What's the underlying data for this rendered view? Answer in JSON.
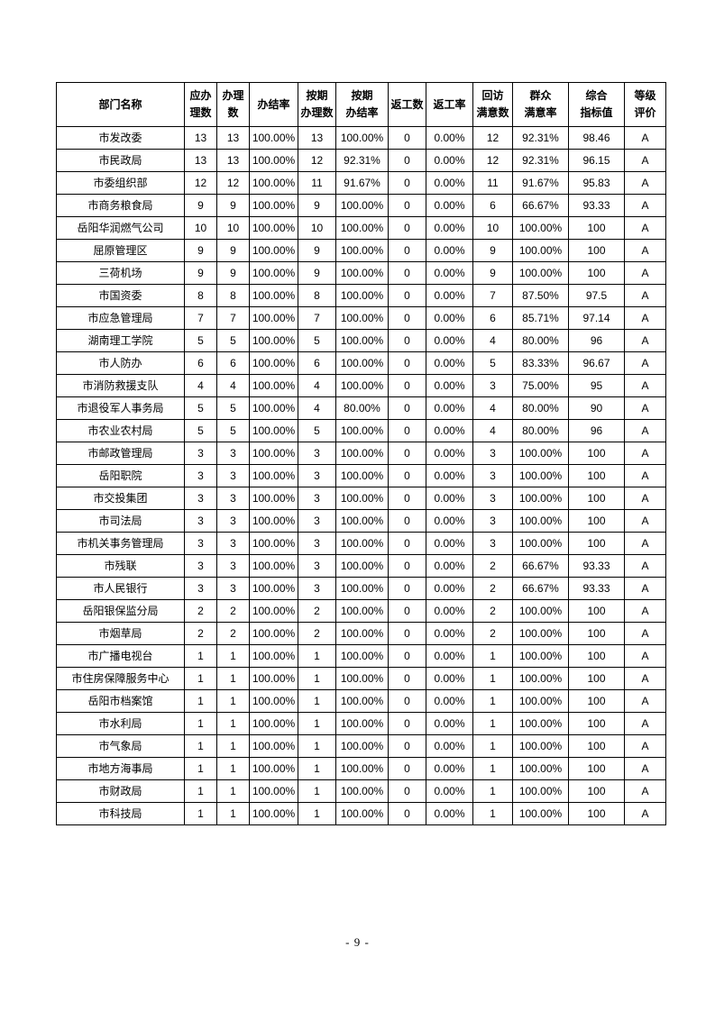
{
  "page": {
    "number": "- 9 -",
    "background_color": "#ffffff",
    "border_color": "#000000",
    "text_color": "#000000"
  },
  "table": {
    "headers": [
      "部门名称",
      "应办\n理数",
      "办理\n数",
      "办结率",
      "按期\n办理数",
      "按期\n办结率",
      "返工数",
      "返工率",
      "回访\n满意数",
      "群众\n满意率",
      "综合\n指标值",
      "等级\n评价"
    ],
    "rows": [
      [
        "市发改委",
        "13",
        "13",
        "100.00%",
        "13",
        "100.00%",
        "0",
        "0.00%",
        "12",
        "92.31%",
        "98.46",
        "A"
      ],
      [
        "市民政局",
        "13",
        "13",
        "100.00%",
        "12",
        "92.31%",
        "0",
        "0.00%",
        "12",
        "92.31%",
        "96.15",
        "A"
      ],
      [
        "市委组织部",
        "12",
        "12",
        "100.00%",
        "11",
        "91.67%",
        "0",
        "0.00%",
        "11",
        "91.67%",
        "95.83",
        "A"
      ],
      [
        "市商务粮食局",
        "9",
        "9",
        "100.00%",
        "9",
        "100.00%",
        "0",
        "0.00%",
        "6",
        "66.67%",
        "93.33",
        "A"
      ],
      [
        "岳阳华润燃气公司",
        "10",
        "10",
        "100.00%",
        "10",
        "100.00%",
        "0",
        "0.00%",
        "10",
        "100.00%",
        "100",
        "A"
      ],
      [
        "屈原管理区",
        "9",
        "9",
        "100.00%",
        "9",
        "100.00%",
        "0",
        "0.00%",
        "9",
        "100.00%",
        "100",
        "A"
      ],
      [
        "三荷机场",
        "9",
        "9",
        "100.00%",
        "9",
        "100.00%",
        "0",
        "0.00%",
        "9",
        "100.00%",
        "100",
        "A"
      ],
      [
        "市国资委",
        "8",
        "8",
        "100.00%",
        "8",
        "100.00%",
        "0",
        "0.00%",
        "7",
        "87.50%",
        "97.5",
        "A"
      ],
      [
        "市应急管理局",
        "7",
        "7",
        "100.00%",
        "7",
        "100.00%",
        "0",
        "0.00%",
        "6",
        "85.71%",
        "97.14",
        "A"
      ],
      [
        "湖南理工学院",
        "5",
        "5",
        "100.00%",
        "5",
        "100.00%",
        "0",
        "0.00%",
        "4",
        "80.00%",
        "96",
        "A"
      ],
      [
        "市人防办",
        "6",
        "6",
        "100.00%",
        "6",
        "100.00%",
        "0",
        "0.00%",
        "5",
        "83.33%",
        "96.67",
        "A"
      ],
      [
        "市消防救援支队",
        "4",
        "4",
        "100.00%",
        "4",
        "100.00%",
        "0",
        "0.00%",
        "3",
        "75.00%",
        "95",
        "A"
      ],
      [
        "市退役军人事务局",
        "5",
        "5",
        "100.00%",
        "4",
        "80.00%",
        "0",
        "0.00%",
        "4",
        "80.00%",
        "90",
        "A"
      ],
      [
        "市农业农村局",
        "5",
        "5",
        "100.00%",
        "5",
        "100.00%",
        "0",
        "0.00%",
        "4",
        "80.00%",
        "96",
        "A"
      ],
      [
        "市邮政管理局",
        "3",
        "3",
        "100.00%",
        "3",
        "100.00%",
        "0",
        "0.00%",
        "3",
        "100.00%",
        "100",
        "A"
      ],
      [
        "岳阳职院",
        "3",
        "3",
        "100.00%",
        "3",
        "100.00%",
        "0",
        "0.00%",
        "3",
        "100.00%",
        "100",
        "A"
      ],
      [
        "市交投集团",
        "3",
        "3",
        "100.00%",
        "3",
        "100.00%",
        "0",
        "0.00%",
        "3",
        "100.00%",
        "100",
        "A"
      ],
      [
        "市司法局",
        "3",
        "3",
        "100.00%",
        "3",
        "100.00%",
        "0",
        "0.00%",
        "3",
        "100.00%",
        "100",
        "A"
      ],
      [
        "市机关事务管理局",
        "3",
        "3",
        "100.00%",
        "3",
        "100.00%",
        "0",
        "0.00%",
        "3",
        "100.00%",
        "100",
        "A"
      ],
      [
        "市残联",
        "3",
        "3",
        "100.00%",
        "3",
        "100.00%",
        "0",
        "0.00%",
        "2",
        "66.67%",
        "93.33",
        "A"
      ],
      [
        "市人民银行",
        "3",
        "3",
        "100.00%",
        "3",
        "100.00%",
        "0",
        "0.00%",
        "2",
        "66.67%",
        "93.33",
        "A"
      ],
      [
        "岳阳银保监分局",
        "2",
        "2",
        "100.00%",
        "2",
        "100.00%",
        "0",
        "0.00%",
        "2",
        "100.00%",
        "100",
        "A"
      ],
      [
        "市烟草局",
        "2",
        "2",
        "100.00%",
        "2",
        "100.00%",
        "0",
        "0.00%",
        "2",
        "100.00%",
        "100",
        "A"
      ],
      [
        "市广播电视台",
        "1",
        "1",
        "100.00%",
        "1",
        "100.00%",
        "0",
        "0.00%",
        "1",
        "100.00%",
        "100",
        "A"
      ],
      [
        "市住房保障服务中心",
        "1",
        "1",
        "100.00%",
        "1",
        "100.00%",
        "0",
        "0.00%",
        "1",
        "100.00%",
        "100",
        "A"
      ],
      [
        "岳阳市档案馆",
        "1",
        "1",
        "100.00%",
        "1",
        "100.00%",
        "0",
        "0.00%",
        "1",
        "100.00%",
        "100",
        "A"
      ],
      [
        "市水利局",
        "1",
        "1",
        "100.00%",
        "1",
        "100.00%",
        "0",
        "0.00%",
        "1",
        "100.00%",
        "100",
        "A"
      ],
      [
        "市气象局",
        "1",
        "1",
        "100.00%",
        "1",
        "100.00%",
        "0",
        "0.00%",
        "1",
        "100.00%",
        "100",
        "A"
      ],
      [
        "市地方海事局",
        "1",
        "1",
        "100.00%",
        "1",
        "100.00%",
        "0",
        "0.00%",
        "1",
        "100.00%",
        "100",
        "A"
      ],
      [
        "市财政局",
        "1",
        "1",
        "100.00%",
        "1",
        "100.00%",
        "0",
        "0.00%",
        "1",
        "100.00%",
        "100",
        "A"
      ],
      [
        "市科技局",
        "1",
        "1",
        "100.00%",
        "1",
        "100.00%",
        "0",
        "0.00%",
        "1",
        "100.00%",
        "100",
        "A"
      ]
    ]
  },
  "chart_data": {
    "type": "table",
    "title": "",
    "columns": [
      "部门名称",
      "应办理数",
      "办理数",
      "办结率",
      "按期办理数",
      "按期办结率",
      "返工数",
      "返工率",
      "回访满意数",
      "群众满意率",
      "综合指标值",
      "等级评价"
    ],
    "rows": [
      [
        "市发改委",
        13,
        13,
        "100.00%",
        13,
        "100.00%",
        0,
        "0.00%",
        12,
        "92.31%",
        98.46,
        "A"
      ],
      [
        "市民政局",
        13,
        13,
        "100.00%",
        12,
        "92.31%",
        0,
        "0.00%",
        12,
        "92.31%",
        96.15,
        "A"
      ],
      [
        "市委组织部",
        12,
        12,
        "100.00%",
        11,
        "91.67%",
        0,
        "0.00%",
        11,
        "91.67%",
        95.83,
        "A"
      ],
      [
        "市商务粮食局",
        9,
        9,
        "100.00%",
        9,
        "100.00%",
        0,
        "0.00%",
        6,
        "66.67%",
        93.33,
        "A"
      ],
      [
        "岳阳华润燃气公司",
        10,
        10,
        "100.00%",
        10,
        "100.00%",
        0,
        "0.00%",
        10,
        "100.00%",
        100,
        "A"
      ],
      [
        "屈原管理区",
        9,
        9,
        "100.00%",
        9,
        "100.00%",
        0,
        "0.00%",
        9,
        "100.00%",
        100,
        "A"
      ],
      [
        "三荷机场",
        9,
        9,
        "100.00%",
        9,
        "100.00%",
        0,
        "0.00%",
        9,
        "100.00%",
        100,
        "A"
      ],
      [
        "市国资委",
        8,
        8,
        "100.00%",
        8,
        "100.00%",
        0,
        "0.00%",
        7,
        "87.50%",
        97.5,
        "A"
      ],
      [
        "市应急管理局",
        7,
        7,
        "100.00%",
        7,
        "100.00%",
        0,
        "0.00%",
        6,
        "85.71%",
        97.14,
        "A"
      ],
      [
        "湖南理工学院",
        5,
        5,
        "100.00%",
        5,
        "100.00%",
        0,
        "0.00%",
        4,
        "80.00%",
        96,
        "A"
      ],
      [
        "市人防办",
        6,
        6,
        "100.00%",
        6,
        "100.00%",
        0,
        "0.00%",
        5,
        "83.33%",
        96.67,
        "A"
      ],
      [
        "市消防救援支队",
        4,
        4,
        "100.00%",
        4,
        "100.00%",
        0,
        "0.00%",
        3,
        "75.00%",
        95,
        "A"
      ],
      [
        "市退役军人事务局",
        5,
        5,
        "100.00%",
        4,
        "80.00%",
        0,
        "0.00%",
        4,
        "80.00%",
        90,
        "A"
      ],
      [
        "市农业农村局",
        5,
        5,
        "100.00%",
        5,
        "100.00%",
        0,
        "0.00%",
        4,
        "80.00%",
        96,
        "A"
      ],
      [
        "市邮政管理局",
        3,
        3,
        "100.00%",
        3,
        "100.00%",
        0,
        "0.00%",
        3,
        "100.00%",
        100,
        "A"
      ],
      [
        "岳阳职院",
        3,
        3,
        "100.00%",
        3,
        "100.00%",
        0,
        "0.00%",
        3,
        "100.00%",
        100,
        "A"
      ],
      [
        "市交投集团",
        3,
        3,
        "100.00%",
        3,
        "100.00%",
        0,
        "0.00%",
        3,
        "100.00%",
        100,
        "A"
      ],
      [
        "市司法局",
        3,
        3,
        "100.00%",
        3,
        "100.00%",
        0,
        "0.00%",
        3,
        "100.00%",
        100,
        "A"
      ],
      [
        "市机关事务管理局",
        3,
        3,
        "100.00%",
        3,
        "100.00%",
        0,
        "0.00%",
        3,
        "100.00%",
        100,
        "A"
      ],
      [
        "市残联",
        3,
        3,
        "100.00%",
        3,
        "100.00%",
        0,
        "0.00%",
        2,
        "66.67%",
        93.33,
        "A"
      ],
      [
        "市人民银行",
        3,
        3,
        "100.00%",
        3,
        "100.00%",
        0,
        "0.00%",
        2,
        "66.67%",
        93.33,
        "A"
      ],
      [
        "岳阳银保监分局",
        2,
        2,
        "100.00%",
        2,
        "100.00%",
        0,
        "0.00%",
        2,
        "100.00%",
        100,
        "A"
      ],
      [
        "市烟草局",
        2,
        2,
        "100.00%",
        2,
        "100.00%",
        0,
        "0.00%",
        2,
        "100.00%",
        100,
        "A"
      ],
      [
        "市广播电视台",
        1,
        1,
        "100.00%",
        1,
        "100.00%",
        0,
        "0.00%",
        1,
        "100.00%",
        100,
        "A"
      ],
      [
        "市住房保障服务中心",
        1,
        1,
        "100.00%",
        1,
        "100.00%",
        0,
        "0.00%",
        1,
        "100.00%",
        100,
        "A"
      ],
      [
        "岳阳市档案馆",
        1,
        1,
        "100.00%",
        1,
        "100.00%",
        0,
        "0.00%",
        1,
        "100.00%",
        100,
        "A"
      ],
      [
        "市水利局",
        1,
        1,
        "100.00%",
        1,
        "100.00%",
        0,
        "0.00%",
        1,
        "100.00%",
        100,
        "A"
      ],
      [
        "市气象局",
        1,
        1,
        "100.00%",
        1,
        "100.00%",
        0,
        "0.00%",
        1,
        "100.00%",
        100,
        "A"
      ],
      [
        "市地方海事局",
        1,
        1,
        "100.00%",
        1,
        "100.00%",
        0,
        "0.00%",
        1,
        "100.00%",
        100,
        "A"
      ],
      [
        "市财政局",
        1,
        1,
        "100.00%",
        1,
        "100.00%",
        0,
        "0.00%",
        1,
        "100.00%",
        100,
        "A"
      ],
      [
        "市科技局",
        1,
        1,
        "100.00%",
        1,
        "100.00%",
        0,
        "0.00%",
        1,
        "100.00%",
        100,
        "A"
      ]
    ],
    "page_number": "- 9 -"
  }
}
